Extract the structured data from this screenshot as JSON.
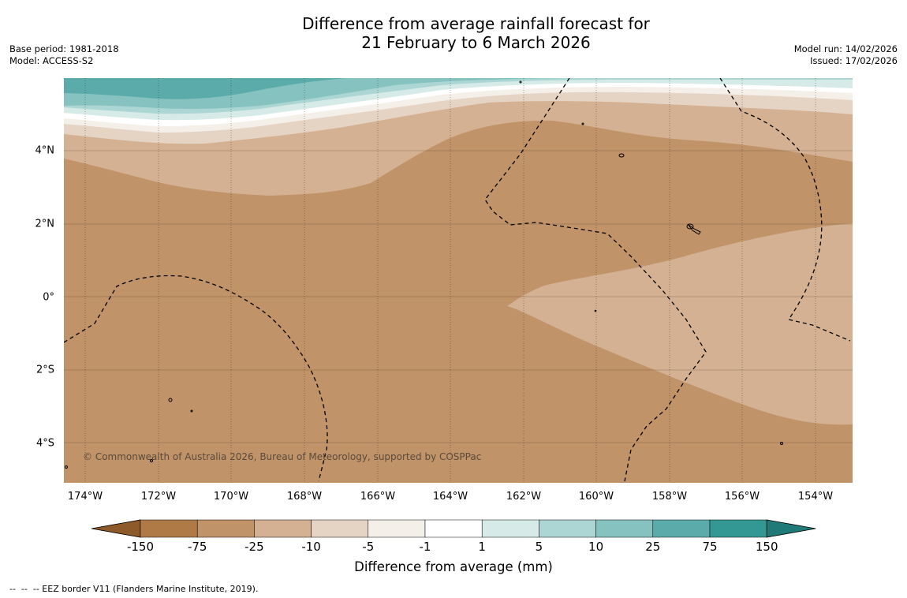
{
  "title_line1": "Difference from average rainfall forecast for",
  "title_line2": "21 February to 6 March 2026",
  "base_period": "Base period: 1981-2018",
  "model": "Model: ACCESS-S2",
  "model_run": "Model run: 14/02/2026",
  "issued": "Issued: 17/02/2026",
  "copyright": "© Commonwealth of Australia 2026, Bureau of Meteorology, supported by COSPPac",
  "lat_labels": [
    "4°N",
    "2°N",
    "0°",
    "2°S",
    "4°S"
  ],
  "lon_labels": [
    "174°W",
    "172°W",
    "170°W",
    "168°W",
    "166°W",
    "164°W",
    "162°W",
    "160°W",
    "158°W",
    "156°W",
    "154°W"
  ],
  "colorbar": {
    "title": "Difference from average (mm)",
    "labels": [
      "-150",
      "-75",
      "-25",
      "-10",
      "-5",
      "-1",
      "1",
      "5",
      "10",
      "25",
      "75",
      "150"
    ],
    "colors": [
      "#8f5a2a",
      "#b07a47",
      "#c09369",
      "#d4b193",
      "#e5d3c4",
      "#f4efe9",
      "#ffffff",
      "#d6ebe8",
      "#acd6d4",
      "#86c2bf",
      "#5babab",
      "#339894",
      "#1f7a78"
    ]
  },
  "footer": "--  --  -- EEZ border V11 (Flanders Marine Institute, 2019)."
}
